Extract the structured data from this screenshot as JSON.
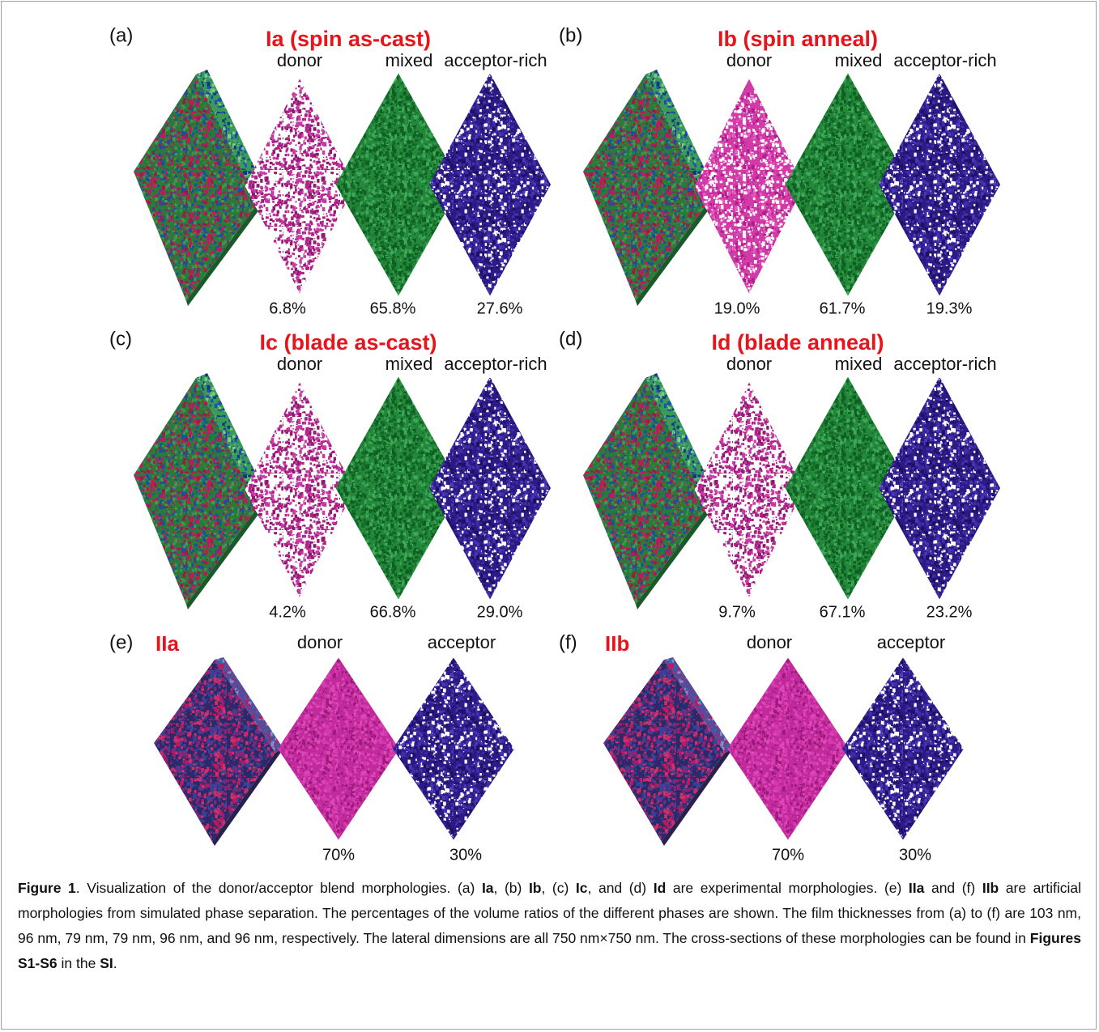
{
  "figure": {
    "panels": [
      {
        "label": "(a)",
        "title": "Ia (spin as-cast)",
        "phases": [
          {
            "name": "donor",
            "percent": "6.8%"
          },
          {
            "name": "mixed",
            "percent": "65.8%"
          },
          {
            "name": "acceptor-rich",
            "percent": "27.6%"
          }
        ]
      },
      {
        "label": "(b)",
        "title": "Ib (spin anneal)",
        "phases": [
          {
            "name": "donor",
            "percent": "19.0%"
          },
          {
            "name": "mixed",
            "percent": "61.7%"
          },
          {
            "name": "acceptor-rich",
            "percent": "19.3%"
          }
        ]
      },
      {
        "label": "(c)",
        "title": "Ic (blade as-cast)",
        "phases": [
          {
            "name": "donor",
            "percent": "4.2%"
          },
          {
            "name": "mixed",
            "percent": "66.8%"
          },
          {
            "name": "acceptor-rich",
            "percent": "29.0%"
          }
        ]
      },
      {
        "label": "(d)",
        "title": "Id (blade anneal)",
        "phases": [
          {
            "name": "donor",
            "percent": "9.7%"
          },
          {
            "name": "mixed",
            "percent": "67.1%"
          },
          {
            "name": "acceptor-rich",
            "percent": "23.2%"
          }
        ]
      },
      {
        "label": "(e)",
        "title": "IIa",
        "phases": [
          {
            "name": "donor",
            "percent": "70%"
          },
          {
            "name": "acceptor",
            "percent": "30%"
          }
        ]
      },
      {
        "label": "(f)",
        "title": "IIb",
        "phases": [
          {
            "name": "donor",
            "percent": "70%"
          },
          {
            "name": "acceptor",
            "percent": "30%"
          }
        ]
      }
    ]
  },
  "caption": [
    "Figure 1",
    ". Visualization of the donor/acceptor blend morphologies. (a) ",
    "Ia",
    ", (b) ",
    "Ib",
    ", (c) ",
    "Ic",
    ", and (d) ",
    "Id",
    " are experimental morphologies. (e) ",
    "IIa",
    " and (f) ",
    "IIb",
    " are artificial morphologies from simulated phase separation. The percentages of the volume ratios of the different phases are shown. The film thicknesses from (a) to (f) are 103 nm, 96 nm, 79 nm, 79 nm, 96 nm, and 96 nm, respectively. The lateral dimensions are all 750 nm×750 nm. The cross-sections of these morphologies can be found in ",
    "Figures S1-S6",
    " in the ",
    "SI",
    "."
  ]
}
